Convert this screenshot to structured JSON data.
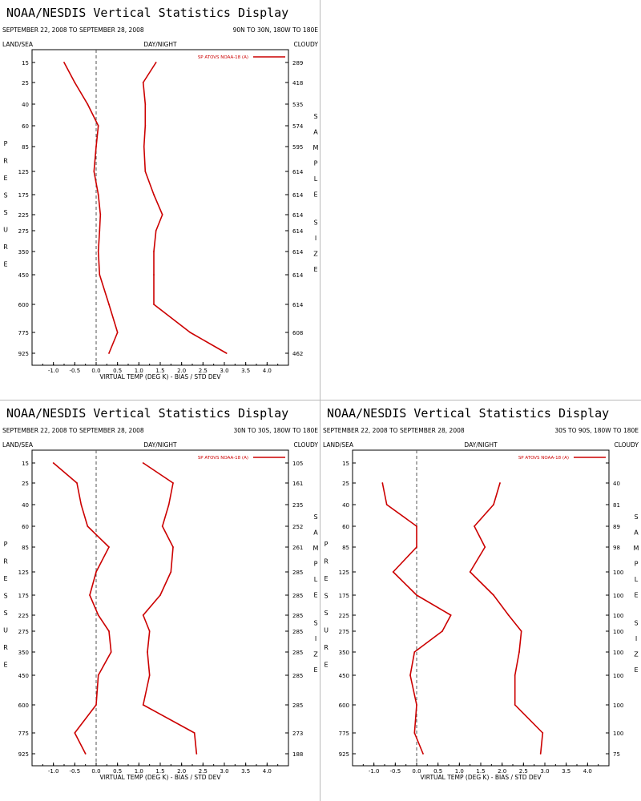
{
  "window": {
    "title": "NOAA/NESDIS Vertical Statistics Display"
  },
  "colors": {
    "series": "#cc0000",
    "axis": "#000000",
    "zero_line": "#555555"
  },
  "chart_data": [
    {
      "type": "line",
      "title": "NOAA/NESDIS Vertical Statistics Display",
      "date_range": "SEPTEMBER 22, 2008 TO SEPTEMBER 28, 2008",
      "region": "90N TO 30N, 180W TO 180E",
      "corner_left": "LAND/SEA",
      "corner_center": "DAY/NIGHT",
      "corner_right": "CLOUDY",
      "ylabel": "PRESSURE",
      "y2label": "SAMPLE SIZE",
      "xlabel": "VIRTUAL TEMP (DEG K) - BIAS / STD DEV",
      "xticks": [
        "-1.0",
        "-0.5",
        "0.0",
        "0.5",
        "1.0",
        "1.5",
        "2.0",
        "2.5",
        "3.0",
        "3.5",
        "4.0"
      ],
      "xlim": [
        -1.5,
        4.5
      ],
      "pressure_levels": [
        "15",
        "25",
        "40",
        "60",
        "85",
        "125",
        "175",
        "225",
        "275",
        "350",
        "450",
        "600",
        "775",
        "925"
      ],
      "sample_sizes": [
        "289",
        "418",
        "535",
        "574",
        "595",
        "614",
        "614",
        "614",
        "614",
        "614",
        "614",
        "614",
        "608",
        "462"
      ],
      "legend": "SP ATOVS NOAA-18 (A)",
      "legend_position": "top-right",
      "series": [
        {
          "name": "bias",
          "values": [
            -0.75,
            -0.5,
            -0.2,
            0.05,
            0.0,
            -0.05,
            0.05,
            0.1,
            0.08,
            0.05,
            0.08,
            0.3,
            0.5,
            0.3
          ]
        },
        {
          "name": "std_dev",
          "values": [
            1.4,
            1.1,
            1.15,
            1.15,
            1.12,
            1.15,
            1.35,
            1.55,
            1.4,
            1.35,
            1.35,
            1.35,
            2.2,
            3.05
          ]
        }
      ]
    },
    {
      "type": "line",
      "title": "NOAA/NESDIS Vertical Statistics Display",
      "date_range": "SEPTEMBER 22, 2008 TO SEPTEMBER 28, 2008",
      "region": "30N TO 30S, 180W TO 180E",
      "corner_left": "LAND/SEA",
      "corner_center": "DAY/NIGHT",
      "corner_right": "CLOUDY",
      "ylabel": "PRESSURE",
      "y2label": "SAMPLE SIZE",
      "xlabel": "VIRTUAL TEMP (DEG K) - BIAS / STD DEV",
      "xticks": [
        "-1.0",
        "-0.5",
        "0.0",
        "0.5",
        "1.0",
        "1.5",
        "2.0",
        "2.5",
        "3.0",
        "3.5",
        "4.0"
      ],
      "xlim": [
        -1.5,
        4.5
      ],
      "pressure_levels": [
        "15",
        "25",
        "40",
        "60",
        "85",
        "125",
        "175",
        "225",
        "275",
        "350",
        "450",
        "600",
        "775",
        "925"
      ],
      "sample_sizes": [
        "105",
        "161",
        "235",
        "252",
        "261",
        "285",
        "285",
        "285",
        "285",
        "285",
        "285",
        "285",
        "273",
        "188"
      ],
      "legend": "SP ATOVS NOAA-18 (A)",
      "legend_position": "top-right",
      "series": [
        {
          "name": "bias",
          "values": [
            -1.0,
            -0.45,
            -0.35,
            -0.2,
            0.3,
            0.0,
            -0.15,
            0.05,
            0.3,
            0.35,
            0.05,
            0.0,
            -0.5,
            -0.25
          ]
        },
        {
          "name": "std_dev",
          "values": [
            1.1,
            1.8,
            1.7,
            1.55,
            1.8,
            1.75,
            1.5,
            1.1,
            1.25,
            1.2,
            1.25,
            1.1,
            2.3,
            2.35
          ]
        }
      ]
    },
    {
      "type": "line",
      "title": "NOAA/NESDIS Vertical Statistics Display",
      "date_range": "SEPTEMBER 22, 2008 TO SEPTEMBER 28, 2008",
      "region": "30S TO 90S, 180W TO 180E",
      "corner_left": "LAND/SEA",
      "corner_center": "DAY/NIGHT",
      "corner_right": "CLOUDY",
      "ylabel": "PRESSURE",
      "y2label": "SAMPLE SIZE",
      "xlabel": "VIRTUAL TEMP (DEG K) - BIAS / STD DEV",
      "xticks": [
        "-1.0",
        "-0.5",
        "0.0",
        "0.5",
        "1.0",
        "1.5",
        "2.0",
        "2.5",
        "3.0",
        "3.5",
        "4.0"
      ],
      "xlim": [
        -1.5,
        4.5
      ],
      "pressure_levels": [
        "15",
        "25",
        "40",
        "60",
        "85",
        "125",
        "175",
        "225",
        "275",
        "350",
        "450",
        "600",
        "775",
        "925"
      ],
      "sample_sizes": [
        "",
        "40",
        "81",
        "89",
        "98",
        "100",
        "100",
        "100",
        "100",
        "100",
        "100",
        "100",
        "100",
        "75"
      ],
      "legend": "SP ATOVS NOAA-18 (A)",
      "legend_position": "top-right",
      "series": [
        {
          "name": "bias",
          "values": [
            null,
            -0.8,
            -0.7,
            0.0,
            0.0,
            -0.55,
            0.0,
            0.8,
            0.6,
            -0.05,
            -0.15,
            0.0,
            -0.05,
            0.15
          ]
        },
        {
          "name": "std_dev",
          "values": [
            null,
            1.95,
            1.8,
            1.35,
            1.6,
            1.25,
            1.8,
            2.15,
            2.45,
            2.4,
            2.3,
            2.3,
            2.95,
            2.9
          ]
        }
      ]
    }
  ]
}
